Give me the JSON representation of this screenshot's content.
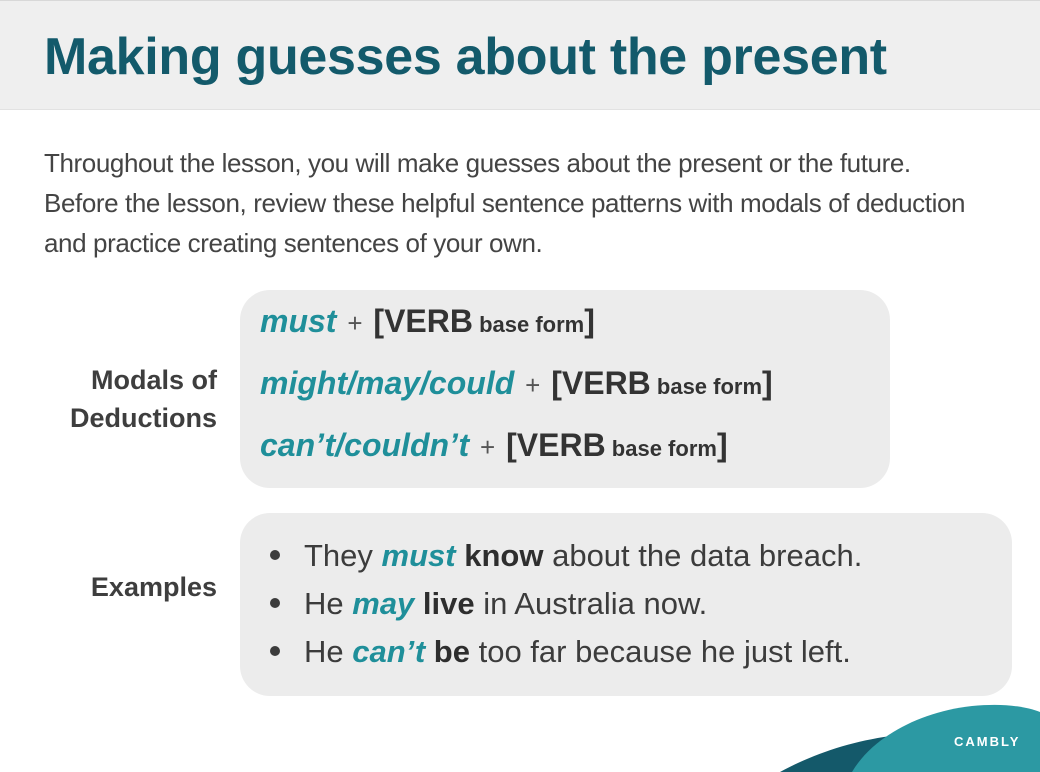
{
  "header": {
    "title": "Making guesses about the present"
  },
  "intro": {
    "text": "Throughout the lesson, you will make guesses about the present or the future. Before the lesson, review these helpful sentence patterns with modals of deduction and practice creating sentences of your own."
  },
  "modals_section": {
    "label_line1": "Modals of",
    "label_line2": "Deductions",
    "patterns": [
      {
        "modal": "must",
        "plus": "+",
        "open": "[",
        "verb": "VERB",
        "form": " base form",
        "close": "]"
      },
      {
        "modal": "might/may/could",
        "plus": "+",
        "open": "[",
        "verb": "VERB",
        "form": " base form",
        "close": "]"
      },
      {
        "modal": "can’t/couldn’t",
        "plus": "+",
        "open": "[",
        "verb": "VERB",
        "form": " base form",
        "close": "]"
      }
    ]
  },
  "examples_section": {
    "label": "Examples",
    "items": [
      {
        "before": "They ",
        "modal": "must",
        "verb": "know",
        "after": " about the data breach."
      },
      {
        "before": "He ",
        "modal": "may",
        "verb": "live",
        "after": " in Australia now."
      },
      {
        "before": "He ",
        "modal": "can’t",
        "verb": "be",
        "after": " too far because he just left."
      }
    ]
  },
  "brand": {
    "name": "CAMBLY"
  },
  "colors": {
    "title": "#135a6b",
    "accent": "#1f8f9a",
    "panel": "#ececec",
    "header_bg": "#efefef",
    "wave_dark": "#14596a",
    "wave_light": "#2c99a3"
  }
}
